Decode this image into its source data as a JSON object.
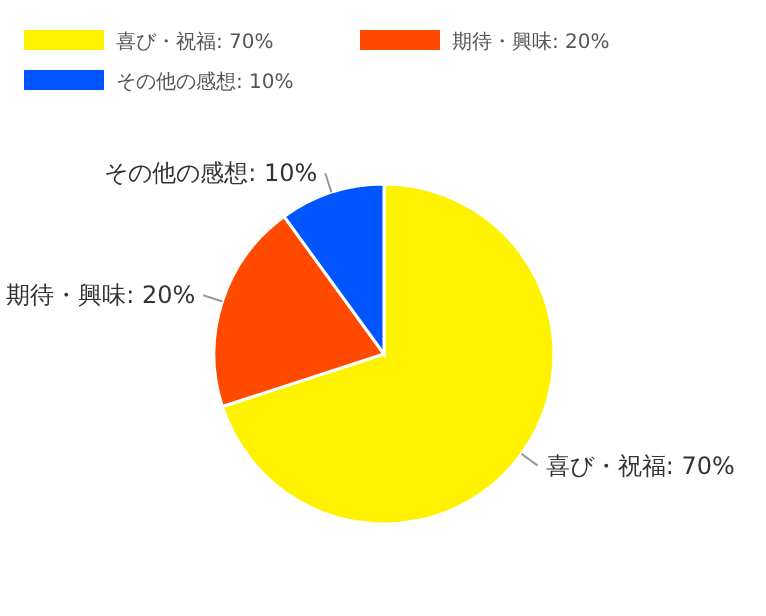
{
  "chart_data": {
    "type": "pie",
    "categories": [
      "喜び・祝福: 70%",
      "期待・興味: 20%",
      "その他の感想: 10%"
    ],
    "values": [
      70,
      20,
      10
    ],
    "colors": [
      "#fff200",
      "#ff4a00",
      "#0055ff"
    ],
    "legend": "top left"
  }
}
